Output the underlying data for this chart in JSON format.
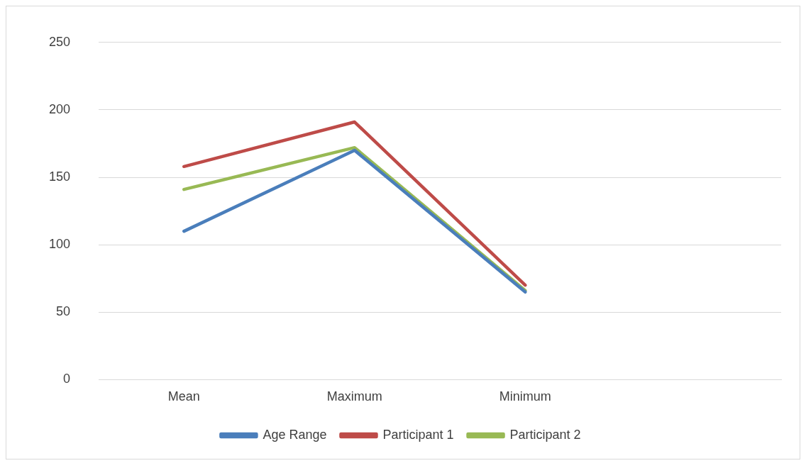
{
  "chart_data": {
    "type": "line",
    "categories": [
      "Mean",
      "Maximum",
      "Minimum",
      null
    ],
    "series": [
      {
        "name": "Age Range",
        "color": "#4a7ebb",
        "values": [
          110,
          170,
          65,
          null
        ]
      },
      {
        "name": "Participant 1",
        "color": "#be4b48",
        "values": [
          158,
          191,
          70,
          null
        ]
      },
      {
        "name": "Participant 2",
        "color": "#98b954",
        "values": [
          141,
          172,
          66,
          null
        ]
      }
    ],
    "ylim": [
      0,
      250
    ],
    "yticks": [
      0,
      50,
      100,
      150,
      200,
      250
    ],
    "grid": "y",
    "legend": "bottom",
    "marker": "none",
    "line_style": "solid"
  }
}
